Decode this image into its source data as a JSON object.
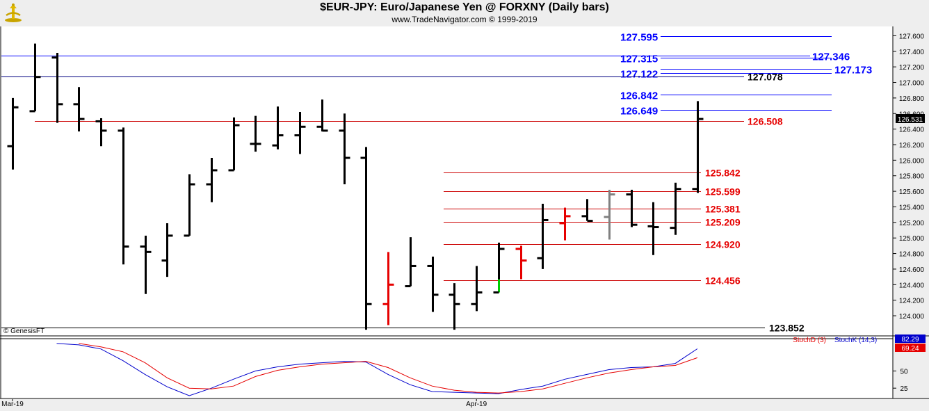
{
  "header": {
    "title": "$EUR-JPY:  Euro/Japanese Yen @ FORXNY  (Daily bars)",
    "subtitle": "www.TradeNavigator.com © 1999-2019"
  },
  "chart_data": [
    {
      "type": "ohlc",
      "title": "$EUR-JPY:  Euro/Japanese Yen @ FORXNY  (Daily bars)",
      "xlabel": "",
      "ylabel": "",
      "ylim": [
        123.75,
        127.72
      ],
      "yticks": [
        "127.600",
        "127.400",
        "127.200",
        "127.000",
        "126.800",
        "126.600",
        "126.400",
        "126.200",
        "126.000",
        "125.800",
        "125.600",
        "125.400",
        "125.200",
        "125.000",
        "124.800",
        "124.600",
        "124.400",
        "124.200",
        "124.000"
      ],
      "xticks": [
        {
          "label": "Mar-19",
          "bar": 0
        },
        {
          "label": "Apr-19",
          "bar": 21
        }
      ],
      "last_price": "126.531",
      "bars": [
        {
          "o": 126.18,
          "h": 126.8,
          "l": 125.88,
          "c": 126.68,
          "color": "#000000"
        },
        {
          "o": 126.63,
          "h": 127.5,
          "l": 126.63,
          "c": 127.07,
          "color": "#000000"
        },
        {
          "o": 127.32,
          "h": 127.38,
          "l": 126.48,
          "c": 126.72,
          "color": "#000000"
        },
        {
          "o": 126.72,
          "h": 126.94,
          "l": 126.37,
          "c": 126.53,
          "color": "#000000"
        },
        {
          "o": 126.5,
          "h": 126.54,
          "l": 126.18,
          "c": 126.38,
          "color": "#000000"
        },
        {
          "o": 126.38,
          "h": 126.42,
          "l": 124.66,
          "c": 124.89,
          "color": "#000000"
        },
        {
          "o": 124.89,
          "h": 125.03,
          "l": 124.28,
          "c": 124.82,
          "color": "#000000"
        },
        {
          "o": 124.71,
          "h": 125.19,
          "l": 124.5,
          "c": 125.03,
          "color": "#000000"
        },
        {
          "o": 125.03,
          "h": 125.82,
          "l": 125.03,
          "c": 125.69,
          "color": "#000000"
        },
        {
          "o": 125.69,
          "h": 126.03,
          "l": 125.46,
          "c": 125.87,
          "color": "#000000"
        },
        {
          "o": 125.87,
          "h": 126.55,
          "l": 125.87,
          "c": 126.45,
          "color": "#000000"
        },
        {
          "o": 126.21,
          "h": 126.57,
          "l": 126.11,
          "c": 126.21,
          "color": "#000000"
        },
        {
          "o": 126.19,
          "h": 126.69,
          "l": 126.14,
          "c": 126.32,
          "color": "#000000"
        },
        {
          "o": 126.32,
          "h": 126.62,
          "l": 126.08,
          "c": 126.43,
          "color": "#000000"
        },
        {
          "o": 126.43,
          "h": 126.78,
          "l": 126.37,
          "c": 126.38,
          "color": "#000000"
        },
        {
          "o": 126.38,
          "h": 126.6,
          "l": 125.69,
          "c": 126.03,
          "color": "#000000"
        },
        {
          "o": 126.03,
          "h": 126.17,
          "l": 123.82,
          "c": 124.15,
          "color": "#000000"
        },
        {
          "o": 124.15,
          "h": 124.82,
          "l": 123.88,
          "c": 124.4,
          "color": "#e60000"
        },
        {
          "o": 124.38,
          "h": 125.01,
          "l": 124.38,
          "c": 124.64,
          "color": "#000000"
        },
        {
          "o": 124.64,
          "h": 124.76,
          "l": 124.05,
          "c": 124.27,
          "color": "#000000"
        },
        {
          "o": 124.27,
          "h": 124.42,
          "l": 123.82,
          "c": 124.15,
          "color": "#000000"
        },
        {
          "o": 124.15,
          "h": 124.64,
          "l": 124.06,
          "c": 124.3,
          "color": "#000000"
        },
        {
          "o": 124.3,
          "h": 124.94,
          "l": 124.3,
          "c": 124.86,
          "color": "#000000",
          "low_color": "#00cc00",
          "low_from": 124.47
        },
        {
          "o": 124.86,
          "h": 124.9,
          "l": 124.47,
          "c": 124.71,
          "color": "#e60000"
        },
        {
          "o": 124.74,
          "h": 125.44,
          "l": 124.6,
          "c": 125.23,
          "color": "#000000"
        },
        {
          "o": 125.19,
          "h": 125.39,
          "l": 124.97,
          "c": 125.28,
          "color": "#e60000"
        },
        {
          "o": 125.28,
          "h": 125.5,
          "l": 125.22,
          "c": 125.22,
          "color": "#000000"
        },
        {
          "o": 125.27,
          "h": 125.62,
          "l": 124.98,
          "c": 125.56,
          "color": "#808080"
        },
        {
          "o": 125.56,
          "h": 125.62,
          "l": 125.14,
          "c": 125.17,
          "color": "#000000"
        },
        {
          "o": 125.15,
          "h": 125.46,
          "l": 124.78,
          "c": 125.14,
          "color": "#000000"
        },
        {
          "o": 125.13,
          "h": 125.71,
          "l": 125.04,
          "c": 125.63,
          "color": "#000000"
        },
        {
          "o": 125.63,
          "h": 126.76,
          "l": 125.58,
          "c": 126.53,
          "color": "#000000"
        }
      ],
      "levels": [
        {
          "label": "127.595",
          "value": 127.595,
          "color": "#0000ff",
          "label_side": "left"
        },
        {
          "label": "127.346",
          "value": 127.346,
          "color": "#0000ff",
          "label_side": "right"
        },
        {
          "label": "127.315",
          "value": 127.315,
          "color": "#0000ff",
          "label_side": "left"
        },
        {
          "label": "127.173",
          "value": 127.173,
          "color": "#0000ff",
          "label_side": "right"
        },
        {
          "label": "127.122",
          "value": 127.122,
          "color": "#0000ff",
          "label_side": "left"
        },
        {
          "label": "127.078",
          "value": 127.078,
          "color": "#000080",
          "label_side": "right",
          "label_color": "#000000"
        },
        {
          "label": "126.842",
          "value": 126.842,
          "color": "#0000ff",
          "label_side": "left"
        },
        {
          "label": "126.649",
          "value": 126.649,
          "color": "#0000ff",
          "label_side": "left"
        },
        {
          "label": "126.508",
          "value": 126.508,
          "color": "#cc0000",
          "label_side": "right",
          "label_color": "#e60000"
        },
        {
          "label": "125.842",
          "value": 125.842,
          "color": "#cc0000",
          "label_side": "right",
          "label_color": "#e60000"
        },
        {
          "label": "125.599",
          "value": 125.599,
          "color": "#cc0000",
          "label_side": "right",
          "label_color": "#e60000"
        },
        {
          "label": "125.381",
          "value": 125.381,
          "color": "#cc0000",
          "label_side": "right",
          "label_color": "#e60000"
        },
        {
          "label": "125.209",
          "value": 125.209,
          "color": "#cc0000",
          "label_side": "right",
          "label_color": "#e60000"
        },
        {
          "label": "124.920",
          "value": 124.92,
          "color": "#cc0000",
          "label_side": "right",
          "label_color": "#e60000"
        },
        {
          "label": "124.456",
          "value": 124.456,
          "color": "#cc0000",
          "label_side": "right",
          "label_color": "#e60000"
        },
        {
          "label": "123.852",
          "value": 123.852,
          "color": "#000000",
          "label_side": "right",
          "label_color": "#000000"
        }
      ],
      "copyright": "© GenesisFT"
    },
    {
      "type": "line",
      "series": [
        {
          "name": "StochK (14,3)",
          "color": "#0000cc",
          "last": "82.29",
          "values": [
            null,
            null,
            90,
            88,
            82,
            65,
            45,
            27,
            14,
            25,
            38,
            50,
            56,
            60,
            62,
            64,
            63,
            45,
            30,
            20,
            19,
            18,
            17,
            23,
            28,
            38,
            45,
            52,
            55,
            56,
            61,
            82.29
          ]
        },
        {
          "name": "StochD (3)",
          "color": "#e60000",
          "last": "69.24",
          "values": [
            null,
            null,
            null,
            90,
            85,
            78,
            62,
            40,
            25,
            24,
            28,
            42,
            51,
            56,
            60,
            62,
            64,
            55,
            40,
            28,
            22,
            19,
            18,
            20,
            24,
            32,
            40,
            47,
            52,
            56,
            58,
            69.24
          ]
        }
      ],
      "ylim": [
        10,
        100
      ],
      "yticks": [
        "50",
        "25"
      ]
    }
  ]
}
